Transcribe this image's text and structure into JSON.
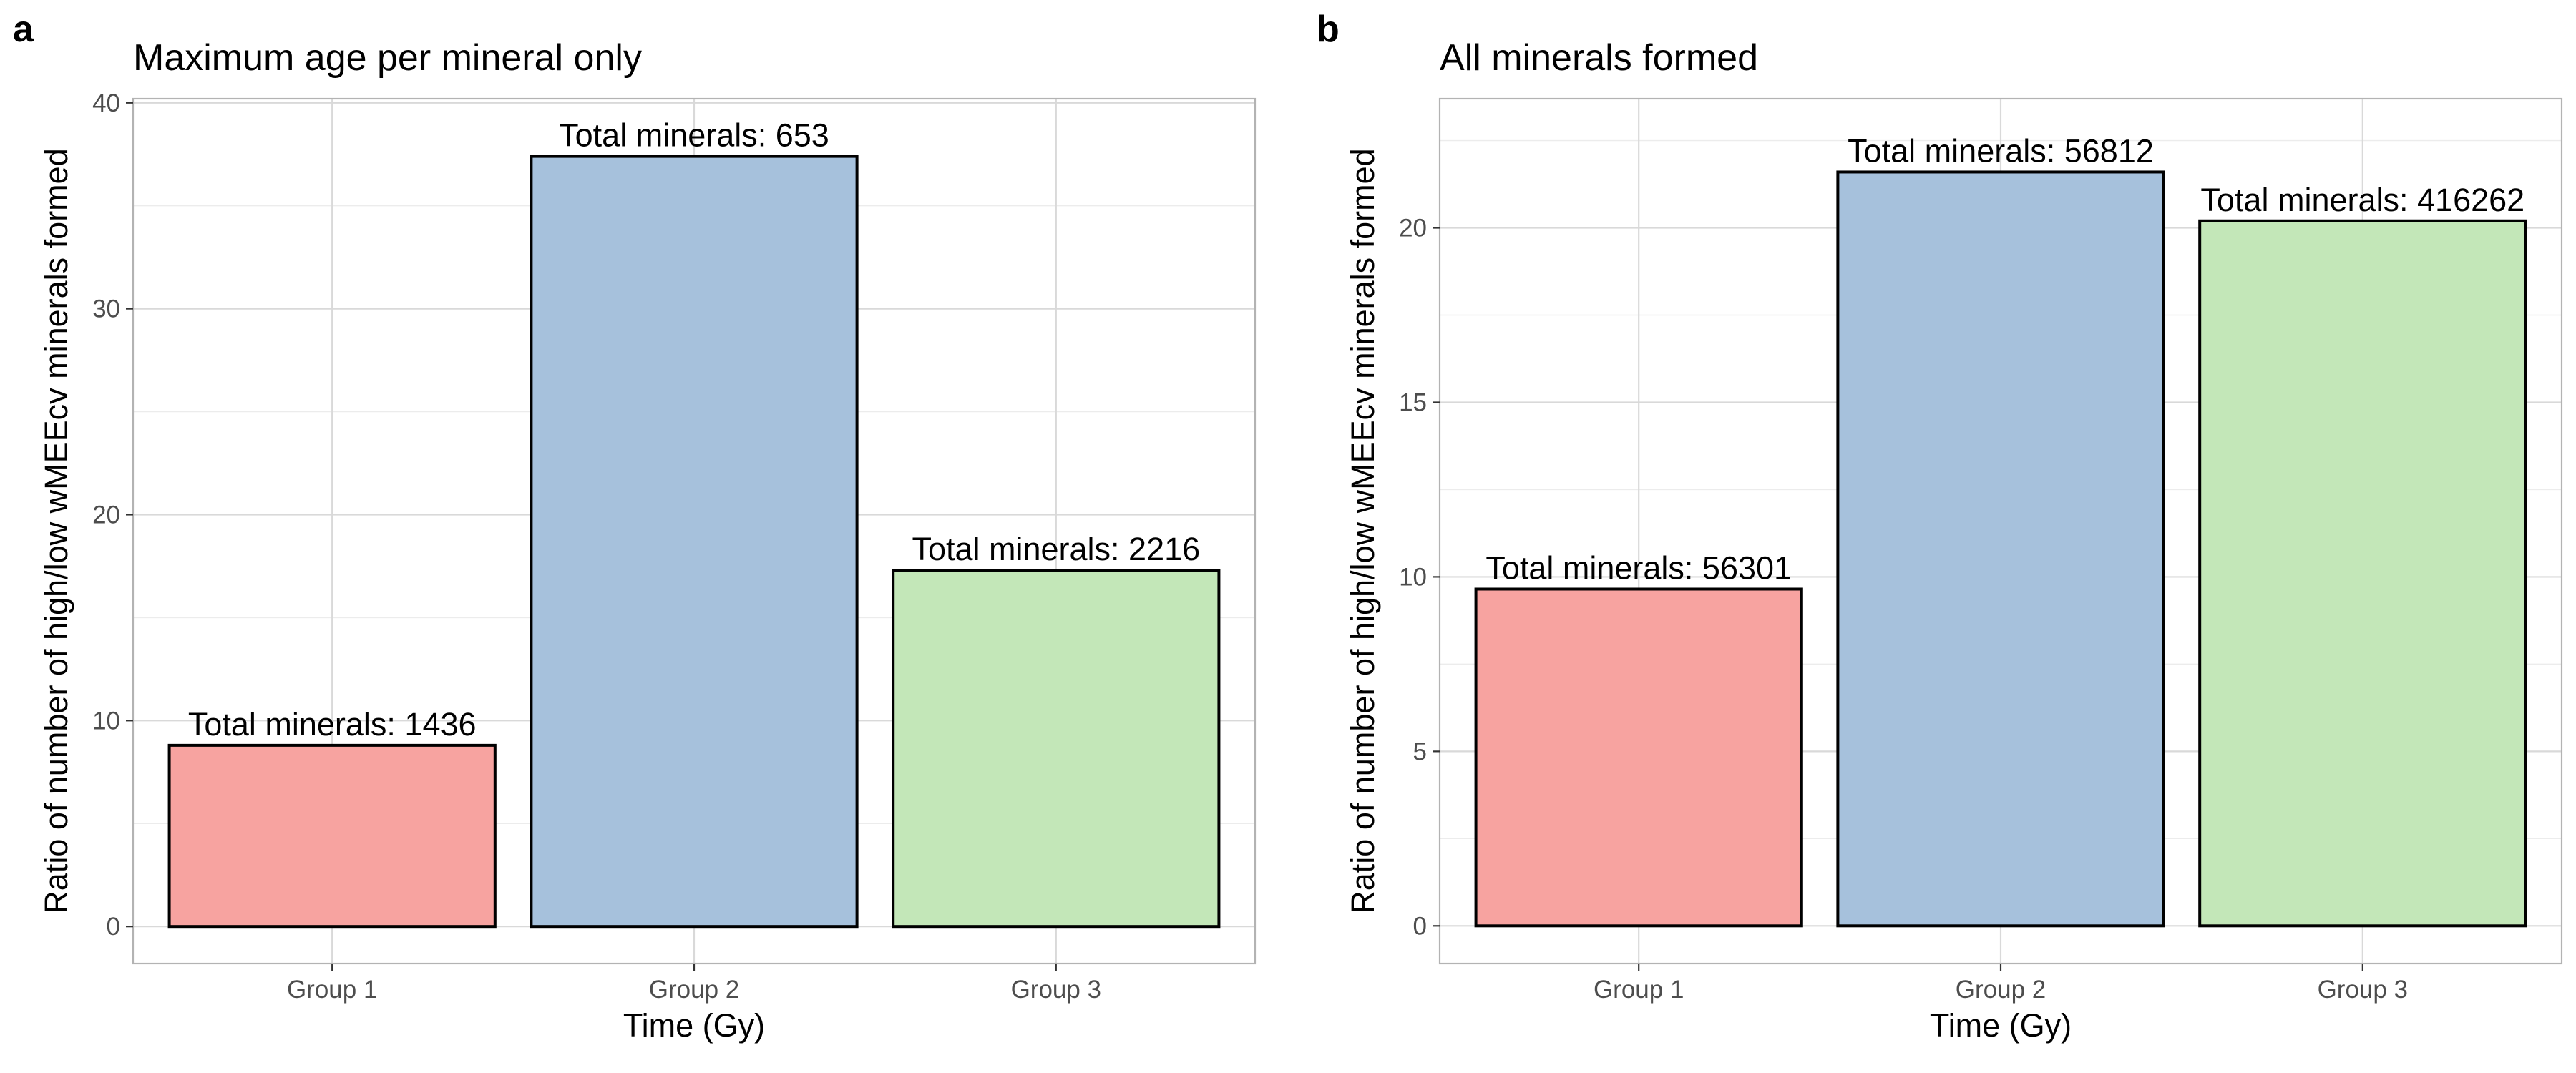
{
  "chart_data": [
    {
      "panel": "a",
      "type": "bar",
      "title": "Maximum age per mineral only",
      "xlabel": "Time (Gy)",
      "ylabel": "Ratio of number of high/low wMEEcv minerals formed",
      "categories": [
        "Group 1",
        "Group 2",
        "Group 3"
      ],
      "values": [
        8.8,
        37.4,
        17.3
      ],
      "bar_labels": [
        "Total minerals: 1436",
        "Total minerals: 653",
        "Total minerals: 2216"
      ],
      "colors": [
        "#f7a3a0",
        "#a6c1dc",
        "#c3e7b8"
      ],
      "ylim": [
        -1.8,
        40.2
      ],
      "yticks": [
        0,
        10,
        20,
        30,
        40
      ],
      "yticks_minor": [
        5,
        15,
        25,
        35
      ],
      "grid": true,
      "legend": "none"
    },
    {
      "panel": "b",
      "type": "bar",
      "title": "All minerals formed",
      "xlabel": "Time (Gy)",
      "ylabel": "Ratio of number of high/low wMEEcv minerals formed",
      "categories": [
        "Group 1",
        "Group 2",
        "Group 3"
      ],
      "values": [
        9.65,
        21.6,
        20.2
      ],
      "bar_labels": [
        "Total minerals: 56301",
        "Total minerals: 56812",
        "Total minerals: 416262"
      ],
      "colors": [
        "#f7a3a0",
        "#a6c1dc",
        "#c3e7b8"
      ],
      "ylim": [
        -1.08,
        23.7
      ],
      "yticks": [
        0,
        5,
        10,
        15,
        20
      ],
      "yticks_minor": [
        2.5,
        7.5,
        12.5,
        17.5,
        22.5
      ],
      "grid": true,
      "legend": "none"
    }
  ]
}
